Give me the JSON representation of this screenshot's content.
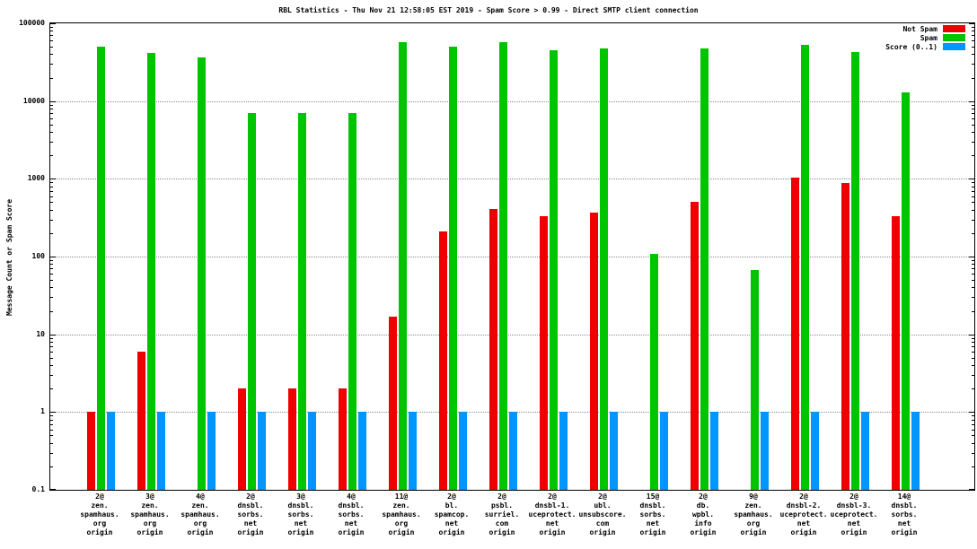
{
  "title": "RBL Statistics - Thu Nov 21 12:58:05 EST 2019 - Spam Score > 0.99 - Direct SMTP client connection",
  "y_axis_label": "Message Count or Spam Score",
  "legend_position": "top-right",
  "chart_data": {
    "type": "bar",
    "scale": "log",
    "title": "RBL Statistics - Thu Nov 21 12:58:05 EST 2019 - Spam Score > 0.99 - Direct SMTP client connection",
    "xlabel": "",
    "ylabel": "Message Count or Spam Score",
    "ylim": [
      0.1,
      100000
    ],
    "yticks": [
      0.1,
      1,
      10,
      100,
      1000,
      10000,
      100000
    ],
    "ytick_labels": [
      "0.1",
      "1",
      "10",
      "100",
      "1000",
      "10000",
      "100000"
    ],
    "grid": true,
    "categories": [
      [
        "2@",
        "zen.",
        "spamhaus.",
        "org",
        "origin"
      ],
      [
        "3@",
        "zen.",
        "spamhaus.",
        "org",
        "origin"
      ],
      [
        "4@",
        "zen.",
        "spamhaus.",
        "org",
        "origin"
      ],
      [
        "2@",
        "dnsbl.",
        "sorbs.",
        "net",
        "origin"
      ],
      [
        "3@",
        "dnsbl.",
        "sorbs.",
        "net",
        "origin"
      ],
      [
        "4@",
        "dnsbl.",
        "sorbs.",
        "net",
        "origin"
      ],
      [
        "11@",
        "zen.",
        "spamhaus.",
        "org",
        "origin"
      ],
      [
        "2@",
        "bl.",
        "spamcop.",
        "net",
        "origin"
      ],
      [
        "2@",
        "psbl.",
        "surriel.",
        "com",
        "origin"
      ],
      [
        "2@",
        "dnsbl-1.",
        "uceprotect.",
        "net",
        "origin"
      ],
      [
        "2@",
        "ubl.",
        "unsubscore.",
        "com",
        "origin"
      ],
      [
        "15@",
        "dnsbl.",
        "sorbs.",
        "net",
        "origin"
      ],
      [
        "2@",
        "db.",
        "wpbl.",
        "info",
        "origin"
      ],
      [
        "9@",
        "zen.",
        "spamhaus.",
        "org",
        "origin"
      ],
      [
        "2@",
        "dnsbl-2.",
        "uceprotect.",
        "net",
        "origin"
      ],
      [
        "2@",
        "dnsbl-3.",
        "uceprotect.",
        "net",
        "origin"
      ],
      [
        "14@",
        "dnsbl.",
        "sorbs.",
        "net",
        "origin"
      ]
    ],
    "series": [
      {
        "name": "Not Spam",
        "color": "#ee0000",
        "values": [
          1,
          6,
          0,
          2,
          2,
          2,
          17,
          210,
          410,
          330,
          370,
          0,
          500,
          0,
          1050,
          880,
          330
        ]
      },
      {
        "name": "Spam",
        "color": "#00c400",
        "values": [
          50000,
          42000,
          36000,
          7000,
          7000,
          7000,
          57000,
          50000,
          57000,
          45000,
          47000,
          107,
          47000,
          68,
          53000,
          43000,
          13000
        ]
      },
      {
        "name": "Score (0..1)",
        "color": "#0095ff",
        "values": [
          1,
          1,
          1,
          1,
          1,
          1,
          1,
          1,
          1,
          1,
          1,
          1,
          1,
          1,
          1,
          1,
          1
        ]
      }
    ]
  }
}
